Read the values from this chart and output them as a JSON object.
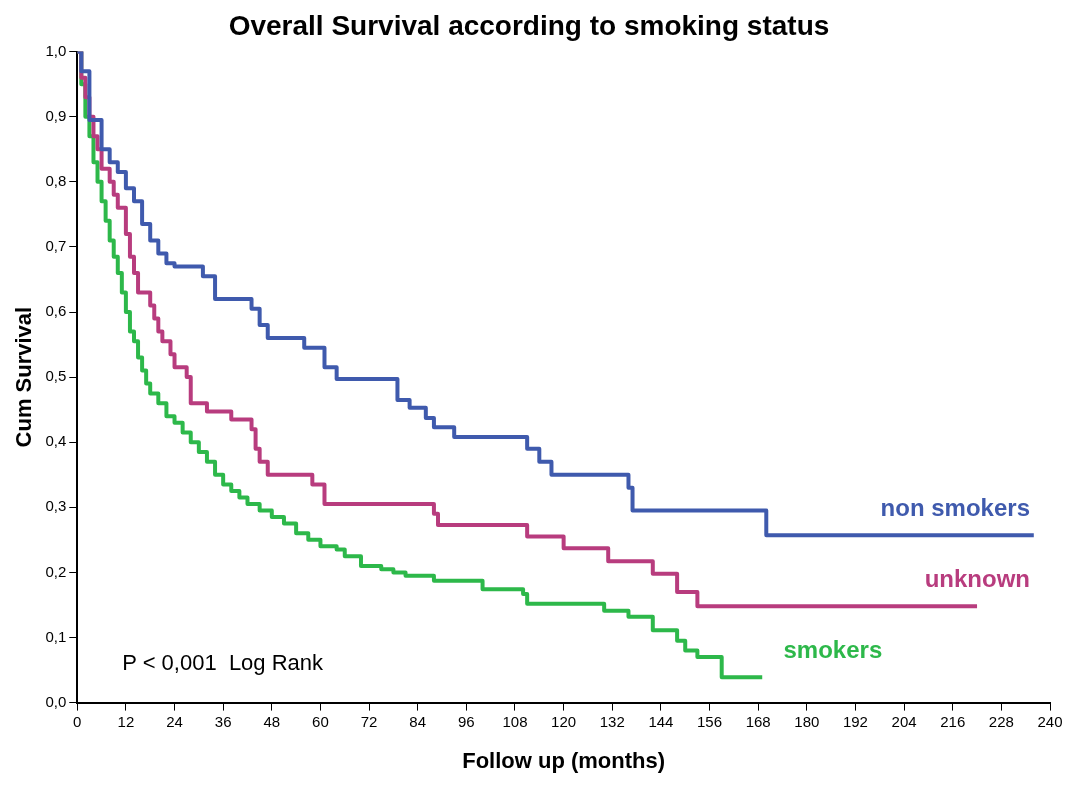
{
  "chart_data": {
    "type": "step",
    "title": "Overall Survival according to smoking status",
    "xlabel": "Follow up (months)",
    "ylabel": "Cum Survival",
    "xlim": [
      0,
      240
    ],
    "xticks": [
      0,
      12,
      24,
      36,
      48,
      60,
      72,
      84,
      96,
      108,
      120,
      132,
      144,
      156,
      168,
      180,
      192,
      204,
      216,
      228,
      240
    ],
    "ylim": [
      0,
      1.0
    ],
    "yticks": [
      {
        "value": 0,
        "label": "0,0"
      },
      {
        "value": 0.1,
        "label": "0,1"
      },
      {
        "value": 0.2,
        "label": "0,2"
      },
      {
        "value": 0.3,
        "label": "0,3"
      },
      {
        "value": 0.4,
        "label": "0,4"
      },
      {
        "value": 0.5,
        "label": "0,5"
      },
      {
        "value": 0.6,
        "label": "0,6"
      },
      {
        "value": 0.7,
        "label": "0,7"
      },
      {
        "value": 0.8,
        "label": "0,8"
      },
      {
        "value": 0.9,
        "label": "0,9"
      },
      {
        "value": 1.0,
        "label": "1,0"
      }
    ],
    "grid": false,
    "legend": false,
    "marker": "none",
    "line_style": "solid",
    "annotations": [
      "P < 0,001  Log Rank"
    ],
    "series": [
      {
        "name": "non smokers",
        "color": "#3f5aad",
        "x": [
          0,
          1,
          3,
          6,
          8,
          10,
          12,
          14,
          16,
          18,
          20,
          22,
          24,
          31,
          34,
          43,
          45,
          47,
          56,
          61,
          64,
          79,
          82,
          86,
          88,
          93,
          111,
          114,
          117,
          136,
          137,
          170,
          236
        ],
        "values": [
          1.0,
          0.97,
          0.895,
          0.85,
          0.83,
          0.815,
          0.79,
          0.77,
          0.735,
          0.71,
          0.69,
          0.675,
          0.67,
          0.655,
          0.62,
          0.605,
          0.58,
          0.56,
          0.545,
          0.515,
          0.497,
          0.465,
          0.453,
          0.437,
          0.423,
          0.408,
          0.39,
          0.37,
          0.35,
          0.33,
          0.295,
          0.257,
          0.257
        ]
      },
      {
        "name": "unknown",
        "color": "#b83c7e",
        "x": [
          0,
          1,
          2,
          3,
          4,
          5,
          6,
          8,
          9,
          10,
          12,
          13,
          14,
          15,
          18,
          19,
          20,
          21,
          23,
          24,
          27,
          28,
          32,
          38,
          43,
          44,
          45,
          47,
          58,
          61,
          88,
          89,
          111,
          120,
          131,
          142,
          148,
          153,
          222
        ],
        "values": [
          1.0,
          0.96,
          0.93,
          0.9,
          0.87,
          0.85,
          0.82,
          0.8,
          0.78,
          0.76,
          0.72,
          0.685,
          0.66,
          0.63,
          0.61,
          0.59,
          0.57,
          0.555,
          0.535,
          0.515,
          0.5,
          0.46,
          0.447,
          0.435,
          0.42,
          0.39,
          0.37,
          0.35,
          0.335,
          0.305,
          0.29,
          0.273,
          0.255,
          0.237,
          0.217,
          0.198,
          0.17,
          0.148,
          0.148
        ]
      },
      {
        "name": "smokers",
        "color": "#2db84a",
        "x": [
          0,
          1,
          2,
          3,
          4,
          5,
          6,
          7,
          8,
          9,
          10,
          11,
          12,
          13,
          14,
          15,
          16,
          17,
          18,
          20,
          22,
          24,
          26,
          28,
          30,
          32,
          34,
          36,
          38,
          40,
          42,
          45,
          48,
          51,
          54,
          57,
          60,
          64,
          66,
          70,
          75,
          78,
          81,
          88,
          100,
          110,
          111,
          130,
          136,
          142,
          148,
          150,
          153,
          159,
          169
        ],
        "values": [
          1.0,
          0.95,
          0.9,
          0.87,
          0.83,
          0.8,
          0.77,
          0.74,
          0.71,
          0.685,
          0.66,
          0.63,
          0.6,
          0.57,
          0.555,
          0.53,
          0.51,
          0.49,
          0.475,
          0.46,
          0.44,
          0.43,
          0.415,
          0.4,
          0.385,
          0.37,
          0.35,
          0.335,
          0.325,
          0.315,
          0.305,
          0.295,
          0.285,
          0.275,
          0.26,
          0.25,
          0.24,
          0.235,
          0.225,
          0.21,
          0.205,
          0.2,
          0.195,
          0.187,
          0.174,
          0.167,
          0.152,
          0.141,
          0.132,
          0.111,
          0.095,
          0.08,
          0.07,
          0.039,
          0.039
        ]
      }
    ]
  }
}
